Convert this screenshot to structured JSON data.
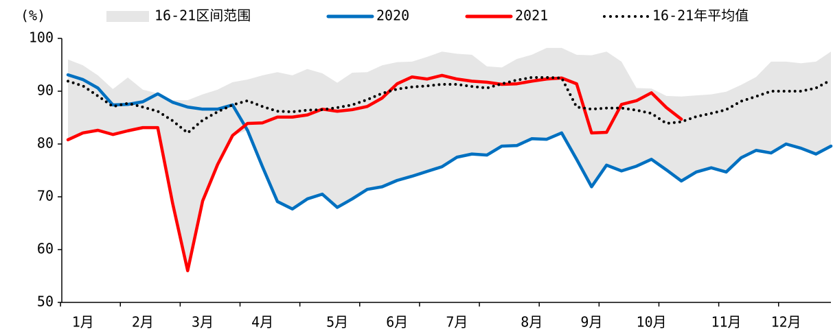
{
  "chart_data": {
    "type": "line",
    "y_label": "(%)",
    "categories": [
      null,
      "1月",
      null,
      null,
      null,
      "2月",
      null,
      null,
      null,
      "3月",
      null,
      null,
      null,
      "4月",
      null,
      null,
      null,
      null,
      "5月",
      null,
      null,
      null,
      "6月",
      null,
      null,
      null,
      "7月",
      null,
      null,
      null,
      null,
      "8月",
      null,
      null,
      null,
      "9月",
      null,
      null,
      null,
      "10月",
      null,
      null,
      null,
      null,
      "11月",
      null,
      null,
      null,
      "12月",
      null,
      null,
      null
    ],
    "ylim": [
      50,
      100
    ],
    "yticks": [
      50,
      60,
      70,
      80,
      90,
      100
    ],
    "series": [
      {
        "name": "16-21区间范围",
        "color": "#e6e6e6",
        "style": "band",
        "high": [
          96.0,
          94.9,
          93.0,
          90.4,
          92.6,
          90.3,
          89.6,
          88.3,
          88.3,
          89.4,
          90.3,
          91.7,
          92.2,
          93.0,
          93.6,
          93.0,
          94.2,
          93.4,
          91.6,
          93.5,
          93.6,
          94.9,
          95.5,
          95.6,
          96.5,
          97.5,
          97.1,
          96.9,
          94.7,
          94.5,
          96.1,
          96.9,
          98.2,
          98.2,
          96.9,
          96.8,
          97.5,
          95.6,
          90.6,
          90.5,
          89.1,
          89.0,
          89.2,
          89.4,
          89.9,
          91.2,
          92.7,
          95.6,
          95.6,
          95.3,
          95.6,
          97.5
        ],
        "low": [
          80.8,
          82.1,
          82.6,
          81.8,
          82.5,
          83.1,
          83.1,
          68.7,
          56.0,
          69.2,
          76.1,
          81.6,
          82.6,
          75.7,
          69.1,
          67.7,
          69.6,
          70.5,
          68.0,
          69.6,
          71.4,
          71.9,
          73.1,
          73.9,
          74.8,
          75.7,
          77.5,
          78.1,
          77.9,
          79.6,
          79.7,
          81.0,
          80.9,
          82.1,
          77.1,
          71.9,
          76.0,
          74.9,
          75.8,
          77.1,
          75.1,
          73.0,
          74.7,
          75.5,
          74.7,
          77.4,
          78.8,
          78.3,
          80.0,
          79.2,
          78.1,
          79.6
        ]
      },
      {
        "name": "2020",
        "color": "#0070c0",
        "style": "solid",
        "values": [
          93.1,
          92.2,
          90.6,
          87.4,
          87.5,
          88.0,
          89.5,
          87.9,
          87.0,
          86.6,
          86.6,
          87.4,
          82.6,
          75.7,
          69.1,
          67.7,
          69.6,
          70.5,
          68.0,
          69.6,
          71.4,
          71.9,
          73.1,
          73.9,
          74.8,
          75.7,
          77.5,
          78.1,
          77.9,
          79.6,
          79.7,
          81.0,
          80.9,
          82.1,
          77.1,
          71.9,
          76.0,
          74.9,
          75.8,
          77.1,
          75.1,
          73.0,
          74.7,
          75.5,
          74.7,
          77.4,
          78.8,
          78.3,
          80.0,
          79.2,
          78.1,
          79.6
        ]
      },
      {
        "name": "2021",
        "color": "#ff0000",
        "style": "solid",
        "values": [
          80.8,
          82.1,
          82.6,
          81.8,
          82.5,
          83.1,
          83.1,
          68.7,
          56.0,
          69.2,
          76.1,
          81.6,
          83.9,
          84.0,
          85.1,
          85.1,
          85.5,
          86.6,
          86.2,
          86.5,
          87.1,
          88.7,
          91.4,
          92.7,
          92.3,
          93.0,
          92.3,
          91.9,
          91.7,
          91.3,
          91.4,
          91.9,
          92.3,
          92.5,
          91.4,
          82.1,
          82.2,
          87.5,
          88.2,
          89.7,
          86.9,
          84.7,
          null,
          null,
          null,
          null,
          null,
          null,
          null,
          null,
          null,
          null
        ]
      },
      {
        "name": "16-21年平均值",
        "color": "#000000",
        "style": "dotted",
        "values": [
          91.9,
          91.0,
          89.1,
          87.1,
          87.7,
          87.0,
          86.2,
          84.4,
          82.1,
          84.5,
          86.1,
          87.4,
          88.2,
          87.1,
          86.2,
          86.1,
          86.4,
          86.5,
          86.9,
          87.4,
          88.4,
          89.6,
          90.4,
          90.8,
          91.0,
          91.3,
          91.3,
          90.9,
          90.6,
          91.4,
          92.1,
          92.6,
          92.6,
          92.5,
          87.0,
          86.6,
          86.8,
          86.8,
          86.4,
          85.8,
          83.9,
          84.2,
          85.2,
          85.8,
          86.5,
          88.1,
          89.0,
          90.0,
          90.0,
          90.0,
          90.6,
          92.1
        ]
      }
    ]
  }
}
